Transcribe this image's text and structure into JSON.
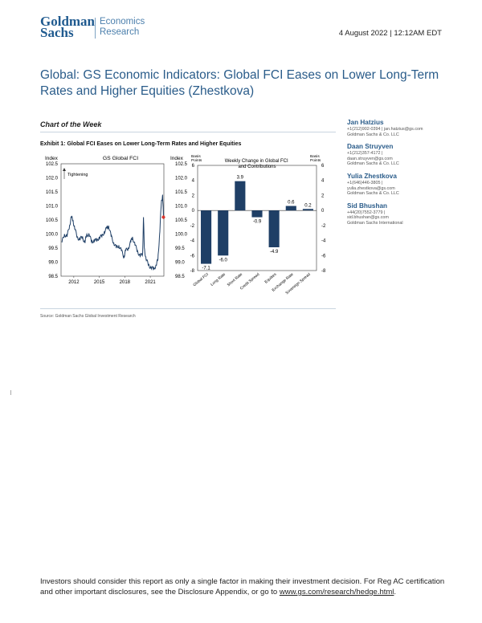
{
  "header": {
    "logo_line1": "Goldman",
    "logo_line2": "Sachs",
    "dept_line1": "Economics",
    "dept_line2": "Research",
    "date": "4 August 2022 | 12:12AM EDT"
  },
  "title": "Global: GS Economic Indicators: Global FCI Eases on Lower Long-Term Rates and Higher Equities (Zhestkova)",
  "section_label": "Chart of the Week",
  "exhibit_title": "Exhibit 1: Global FCI Eases on Lower Long-Term Rates and Higher Equities",
  "contacts": [
    {
      "name": "Jan Hatzius",
      "lines": [
        "+1(212)902-0394 | jan.hatzius@gs.com",
        "Goldman Sachs & Co. LLC"
      ]
    },
    {
      "name": "Daan Struyven",
      "lines": [
        "+1(212)357-4172 |",
        "daan.struyven@gs.com",
        "Goldman Sachs & Co. LLC"
      ]
    },
    {
      "name": "Yulia Zhestkova",
      "lines": [
        "+1(646)446-3805 |",
        "yulia.zhestkova@gs.com",
        "Goldman Sachs & Co. LLC"
      ]
    },
    {
      "name": "Sid Bhushan",
      "lines": [
        "+44(20)7552-3779 |",
        "sid.bhushan@gs.com",
        "Goldman Sachs International"
      ]
    }
  ],
  "source": "Source: Goldman Sachs Global Investment Research",
  "disclaimer": {
    "text": "Investors should consider this report as only a single factor in making their investment decision. For Reg AC certification and other important disclosures, see the Disclosure Appendix, or go to ",
    "link": "www.gs.com/research/hedge.html",
    "end": "."
  },
  "colors": {
    "brand": "#1f5a8f",
    "bar": "#1f3f66",
    "line": "#1f3f66",
    "marker": "#d9332b"
  },
  "chart_data": [
    {
      "type": "line",
      "title": "GS Global FCI",
      "ylabel_left": "Index",
      "ylabel_right": "Index",
      "annotation": "Tightening",
      "ylim": [
        98.5,
        102.5
      ],
      "yticks": [
        "102.5",
        "102.0",
        "101.5",
        "101.0",
        "100.5",
        "100.0",
        "99.5",
        "99.0",
        "98.5"
      ],
      "xticks": [
        "2012",
        "2015",
        "2018",
        "2021"
      ],
      "xlim": [
        2010.5,
        2022.6
      ],
      "series": [
        {
          "name": "GS Global FCI",
          "x": [
            2010.6,
            2010.9,
            2011.2,
            2011.5,
            2011.7,
            2011.9,
            2012.1,
            2012.4,
            2012.7,
            2013.0,
            2013.3,
            2013.5,
            2013.8,
            2014.1,
            2014.4,
            2014.7,
            2015.0,
            2015.3,
            2015.6,
            2015.9,
            2016.1,
            2016.4,
            2016.7,
            2017.0,
            2017.3,
            2017.6,
            2017.9,
            2018.1,
            2018.4,
            2018.7,
            2018.9,
            2019.2,
            2019.5,
            2019.8,
            2020.1,
            2020.2,
            2020.3,
            2020.5,
            2020.8,
            2021.1,
            2021.4,
            2021.7,
            2021.9,
            2022.1,
            2022.3,
            2022.45,
            2022.55
          ],
          "y": [
            99.7,
            100.0,
            99.9,
            100.3,
            100.6,
            100.5,
            100.2,
            99.9,
            99.8,
            99.9,
            99.7,
            99.95,
            100.0,
            99.7,
            99.8,
            99.75,
            99.9,
            99.9,
            100.1,
            100.2,
            100.3,
            99.9,
            99.7,
            99.5,
            99.6,
            99.4,
            99.2,
            99.4,
            99.5,
            99.7,
            99.9,
            99.6,
            99.4,
            99.2,
            99.3,
            100.6,
            99.5,
            99.1,
            98.9,
            98.8,
            98.75,
            98.9,
            99.1,
            100.0,
            101.1,
            101.4,
            100.6
          ]
        }
      ],
      "marker": {
        "x": 2022.55,
        "y": 100.6
      }
    },
    {
      "type": "bar",
      "title": "Weekly Change in Global FCI and Contributions",
      "ylabel_left": "Basis Points",
      "ylabel_right": "Basis Points",
      "ylim": [
        -8,
        6
      ],
      "yticks": [
        "6",
        "4",
        "2",
        "0",
        "-2",
        "-4",
        "-6",
        "-8"
      ],
      "categories": [
        "Global FCI",
        "Long Rate",
        "Short Rate",
        "Credit Spread",
        "Equities",
        "Exchange Rate",
        "Sovereign Spread"
      ],
      "values": [
        -7.1,
        -6.0,
        3.9,
        -0.9,
        -4.9,
        0.6,
        0.2
      ],
      "value_labels": [
        "-7.1",
        "-6.0",
        "3.9",
        "-0.9",
        "-4.9",
        "0.6",
        "0.2"
      ]
    }
  ]
}
